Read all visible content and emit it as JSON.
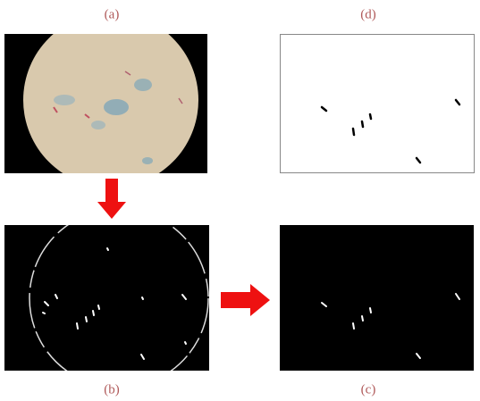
{
  "panels": {
    "a": {
      "label": "(a)"
    },
    "b": {
      "label": "(b)"
    },
    "c": {
      "label": "(c)"
    },
    "d": {
      "label": "(d)"
    }
  }
}
